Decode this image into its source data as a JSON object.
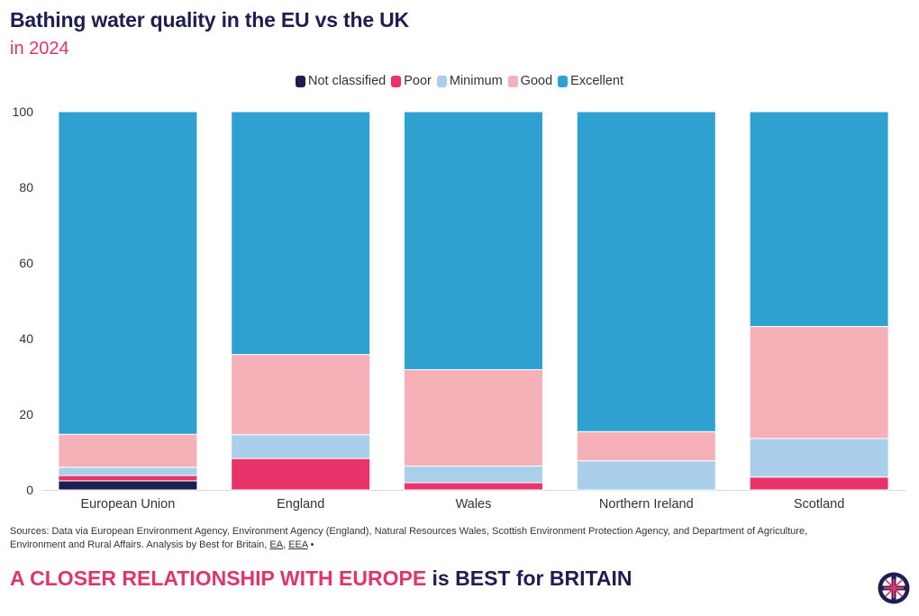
{
  "header": {
    "title": "Bathing water quality in the EU vs the UK",
    "subtitle": "in 2024"
  },
  "chart_data": {
    "type": "bar",
    "stacked": true,
    "title": "Bathing water quality in the EU vs the UK",
    "subtitle": "in 2024",
    "xlabel": "",
    "ylabel": "",
    "ylim": [
      0,
      100
    ],
    "yticks": [
      0,
      20,
      40,
      60,
      80,
      100
    ],
    "grid": false,
    "legend_position": "top-center",
    "categories": [
      "European Union",
      "England",
      "Wales",
      "Northern Ireland",
      "Scotland"
    ],
    "series": [
      {
        "name": "Not classified",
        "color": "#1e1e50",
        "values": [
          2.4,
          0,
          0,
          0,
          0
        ]
      },
      {
        "name": "Poor",
        "color": "#e8336b",
        "values": [
          1.4,
          8.3,
          1.9,
          0,
          3.4
        ]
      },
      {
        "name": "Minimum",
        "color": "#a9cfea",
        "values": [
          2.2,
          6.3,
          4.4,
          7.7,
          10.2
        ]
      },
      {
        "name": "Good",
        "color": "#f5b1b7",
        "values": [
          8.7,
          21.2,
          25.5,
          7.7,
          29.6
        ]
      },
      {
        "name": "Excellent",
        "color": "#2ea1d0",
        "values": [
          85.3,
          64.2,
          68.2,
          84.6,
          56.8
        ]
      }
    ]
  },
  "footer": {
    "sources_prefix": "Sources: Data via European Environment Agency, Environment Agency (England), Natural Resources Wales, Scottish Environment Protection Agency, and Department of Agriculture, Environment and Rural Affairs. Analysis by Best for Britain, ",
    "link_ea": "EA",
    "separator": ", ",
    "link_eea": "EEA",
    "bullet": " •",
    "tagline_accent": "A CLOSER RELATIONSHIP WITH EUROPE",
    "tagline_rest": " is BEST for BRITAIN"
  },
  "logo": {
    "icon": "union-flag-compass-icon",
    "colors": {
      "ring": "#1e1e50",
      "flag_red": "#e0356a",
      "flag_white": "#ffffff"
    }
  }
}
